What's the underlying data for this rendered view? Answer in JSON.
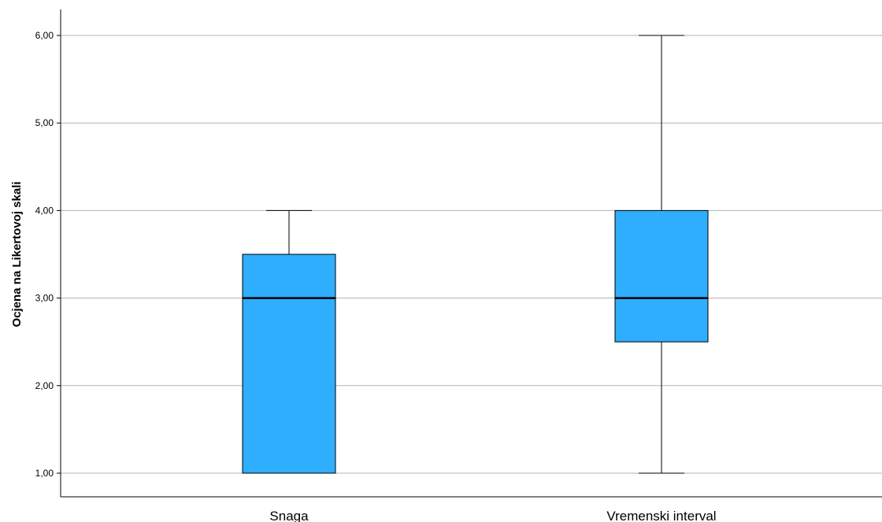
{
  "chart_data": {
    "type": "boxplot",
    "ylabel": "Ocjena na Likertovoj skali",
    "ylim": [
      0.75,
      6.3
    ],
    "yticks": [
      1,
      2,
      3,
      4,
      5,
      6
    ],
    "ytick_labels": [
      "1,00",
      "2,00",
      "3,00",
      "4,00",
      "5,00",
      "6,00"
    ],
    "grid": true,
    "categories": [
      "Snaga",
      "Vremenski interval"
    ],
    "boxes": [
      {
        "category": "Snaga",
        "min": 1.0,
        "q1": 1.0,
        "median": 3.0,
        "q3": 3.5,
        "max": 4.0
      },
      {
        "category": "Vremenski interval",
        "min": 1.0,
        "q1": 2.5,
        "median": 3.0,
        "q3": 4.0,
        "max": 6.0
      }
    ],
    "box_color": "#2eaefd",
    "grid_color": "#b3b3b3"
  }
}
